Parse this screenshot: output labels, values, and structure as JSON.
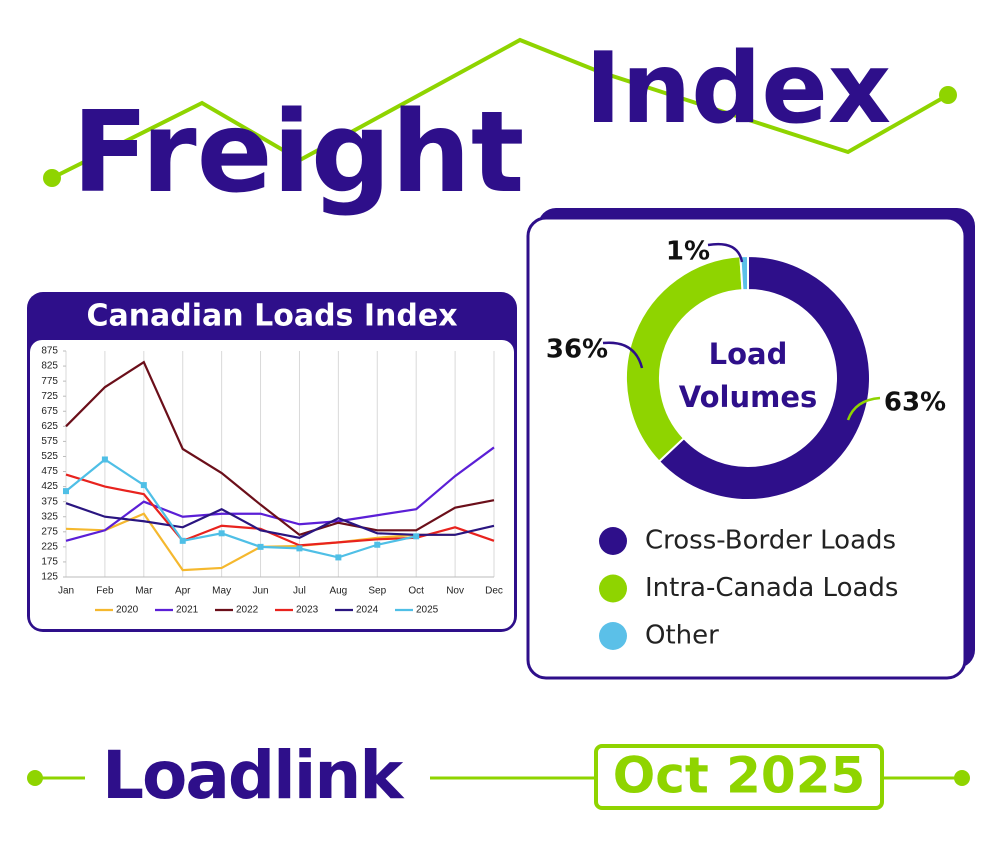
{
  "header": {
    "title_1": "Freight",
    "title_2": "Index"
  },
  "chart_data": [
    {
      "type": "line",
      "title": "Canadian Loads Index",
      "categories": [
        "Jan",
        "Feb",
        "Mar",
        "Apr",
        "May",
        "Jun",
        "Jul",
        "Aug",
        "Sep",
        "Oct",
        "Nov",
        "Dec"
      ],
      "ylim": [
        125,
        875
      ],
      "yticks": [
        125,
        175,
        225,
        275,
        325,
        375,
        425,
        475,
        525,
        575,
        625,
        675,
        725,
        775,
        825,
        875
      ],
      "grid": "x",
      "series": [
        {
          "name": "2020",
          "color": "#f5b82e",
          "values": [
            285,
            280,
            335,
            148,
            155,
            225,
            228,
            240,
            255,
            265,
            265,
            null
          ]
        },
        {
          "name": "2021",
          "color": "#5b1fd6",
          "values": [
            245,
            280,
            375,
            325,
            335,
            335,
            300,
            310,
            330,
            350,
            460,
            555
          ]
        },
        {
          "name": "2022",
          "color": "#6b0f1a",
          "values": [
            625,
            755,
            838,
            550,
            470,
            365,
            265,
            305,
            280,
            280,
            355,
            380
          ]
        },
        {
          "name": "2023",
          "color": "#e8231e",
          "values": [
            465,
            425,
            400,
            245,
            295,
            285,
            230,
            240,
            250,
            255,
            290,
            245
          ]
        },
        {
          "name": "2024",
          "color": "#2a1580",
          "values": [
            370,
            325,
            310,
            290,
            350,
            280,
            255,
            320,
            270,
            265,
            265,
            295
          ]
        },
        {
          "name": "2025",
          "color": "#4fbfe6",
          "markers": true,
          "values": [
            410,
            515,
            430,
            245,
            270,
            225,
            220,
            190,
            232,
            260,
            null,
            null
          ]
        }
      ]
    },
    {
      "type": "pie",
      "title": "Load Volumes",
      "categories": [
        "Cross-Border Loads",
        "Intra-Canada Loads",
        "Other"
      ],
      "values": [
        63,
        36,
        1
      ],
      "value_labels": [
        "63%",
        "36%",
        "1%"
      ],
      "colors": [
        "#2e0f8a",
        "#8fd400",
        "#5bc0e8"
      ]
    }
  ],
  "footer": {
    "brand": "Loadlink",
    "date": "Oct 2025"
  }
}
